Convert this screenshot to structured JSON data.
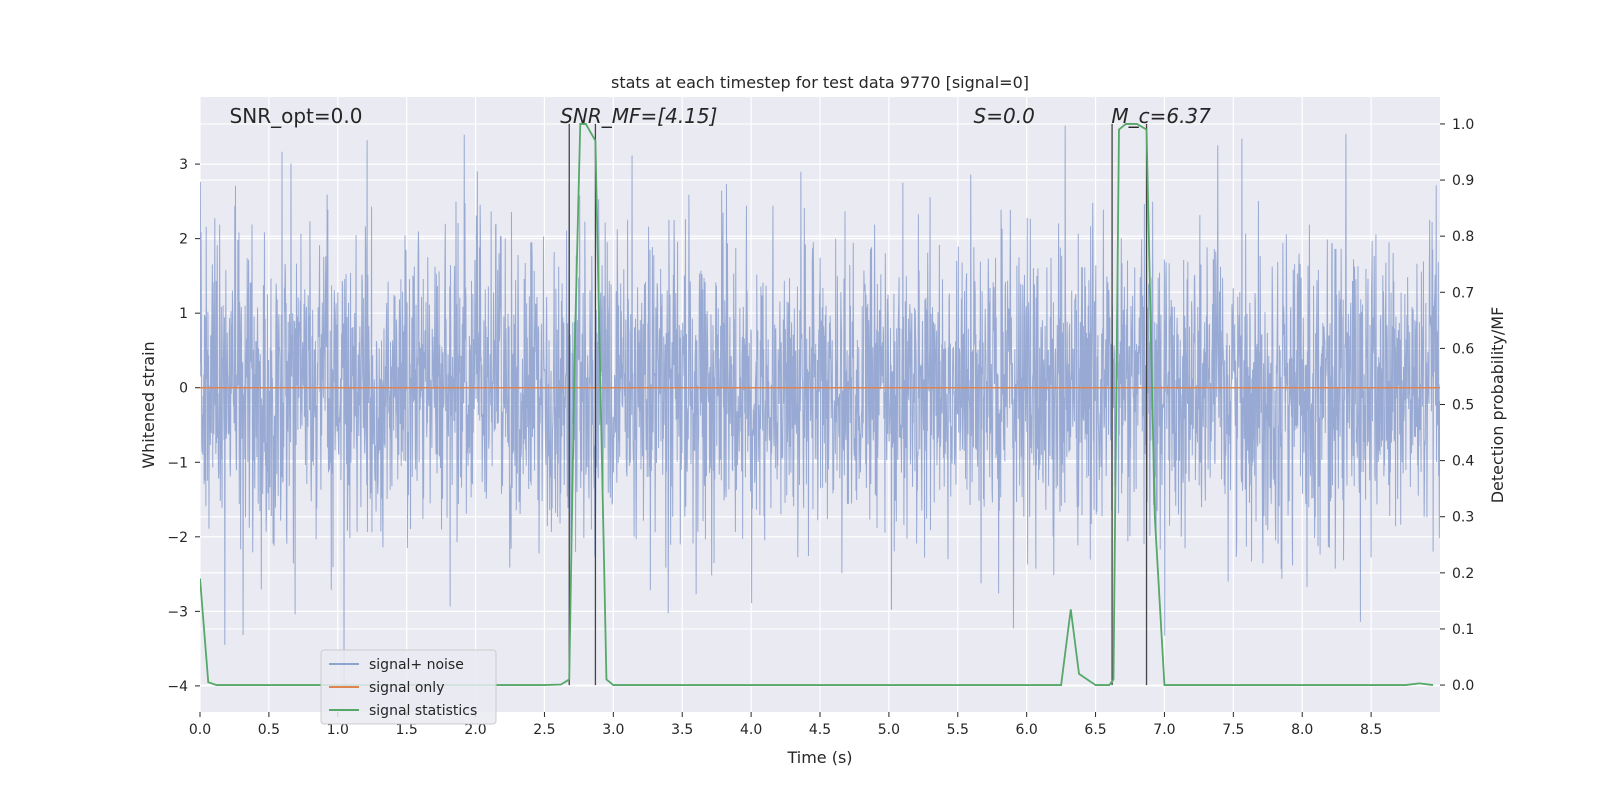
{
  "chart_data": {
    "type": "line",
    "title": "stats at each timestep for test data 9770 [signal=0]",
    "xlabel": "Time (s)",
    "ylabel": "Whitened strain",
    "y2label": "Detection probability/MF",
    "xlim": [
      0.0,
      9.0
    ],
    "ylim": [
      -4.35,
      3.9
    ],
    "y2lim": [
      -0.048,
      1.048
    ],
    "grid": true,
    "legend_position": "lower-left",
    "x_ticks": [
      0.0,
      0.5,
      1.0,
      1.5,
      2.0,
      2.5,
      3.0,
      3.5,
      4.0,
      4.5,
      5.0,
      5.5,
      6.0,
      6.5,
      7.0,
      7.5,
      8.0,
      8.5
    ],
    "x_tick_labels": [
      "0.0",
      "0.5",
      "1.0",
      "1.5",
      "2.0",
      "2.5",
      "3.0",
      "3.5",
      "4.0",
      "4.5",
      "5.0",
      "5.5",
      "6.0",
      "6.5",
      "7.0",
      "7.5",
      "8.0",
      "8.5"
    ],
    "y_ticks": [
      -4,
      -3,
      -2,
      -1,
      0,
      1,
      2,
      3
    ],
    "y_tick_labels": [
      "−4",
      "−3",
      "−2",
      "−1",
      "0",
      "1",
      "2",
      "3"
    ],
    "y2_ticks": [
      0.0,
      0.1,
      0.2,
      0.3,
      0.4,
      0.5,
      0.6,
      0.7,
      0.8,
      0.9,
      1.0
    ],
    "y2_tick_labels": [
      "0.0",
      "0.1",
      "0.2",
      "0.3",
      "0.4",
      "0.5",
      "0.6",
      "0.7",
      "0.8",
      "0.9",
      "1.0"
    ],
    "annotations": [
      {
        "text": "SNR_opt=0.0",
        "x": 0.2,
        "italic": false
      },
      {
        "text": "SNR_MF=[4.15]",
        "x": 2.6,
        "italic": true
      },
      {
        "text": "S=0.0",
        "x": 5.6,
        "italic": true
      },
      {
        "text": "M_c=6.37",
        "x": 6.6,
        "italic": true
      }
    ],
    "vertical_markers": [
      2.68,
      2.87,
      6.62,
      6.87
    ],
    "series": [
      {
        "name": "signal+ noise",
        "color": "#8fa3cf",
        "axis": "left",
        "kind": "noise",
        "sample_count": 3600,
        "sigma": 1.0,
        "clip": [
          -4.0,
          3.6
        ]
      },
      {
        "name": "signal only",
        "color": "#dd8452",
        "axis": "left",
        "x": [
          0.0,
          9.0
        ],
        "y": [
          0.0,
          0.0
        ]
      },
      {
        "name": "signal statistics",
        "color": "#55a868",
        "axis": "right",
        "x": [
          0.0,
          0.06,
          0.12,
          0.5,
          1.0,
          1.5,
          2.0,
          2.5,
          2.62,
          2.68,
          2.72,
          2.76,
          2.8,
          2.87,
          2.95,
          3.0,
          3.5,
          4.0,
          4.5,
          5.0,
          5.5,
          6.0,
          6.25,
          6.32,
          6.38,
          6.5,
          6.6,
          6.63,
          6.67,
          6.72,
          6.8,
          6.87,
          6.93,
          7.0,
          7.5,
          8.0,
          8.5,
          8.75,
          8.85,
          8.95
        ],
        "y": [
          0.19,
          0.005,
          0.0,
          0.0,
          0.0,
          0.0,
          0.0,
          0.0,
          0.001,
          0.01,
          0.6,
          1.0,
          1.0,
          0.97,
          0.01,
          0.0,
          0.0,
          0.0,
          0.0,
          0.0,
          0.0,
          0.0,
          0.0,
          0.135,
          0.02,
          0.0,
          0.0,
          0.01,
          0.99,
          1.0,
          1.0,
          0.99,
          0.3,
          0.0,
          0.0,
          0.0,
          0.0,
          0.0,
          0.003,
          0.0
        ]
      }
    ]
  }
}
